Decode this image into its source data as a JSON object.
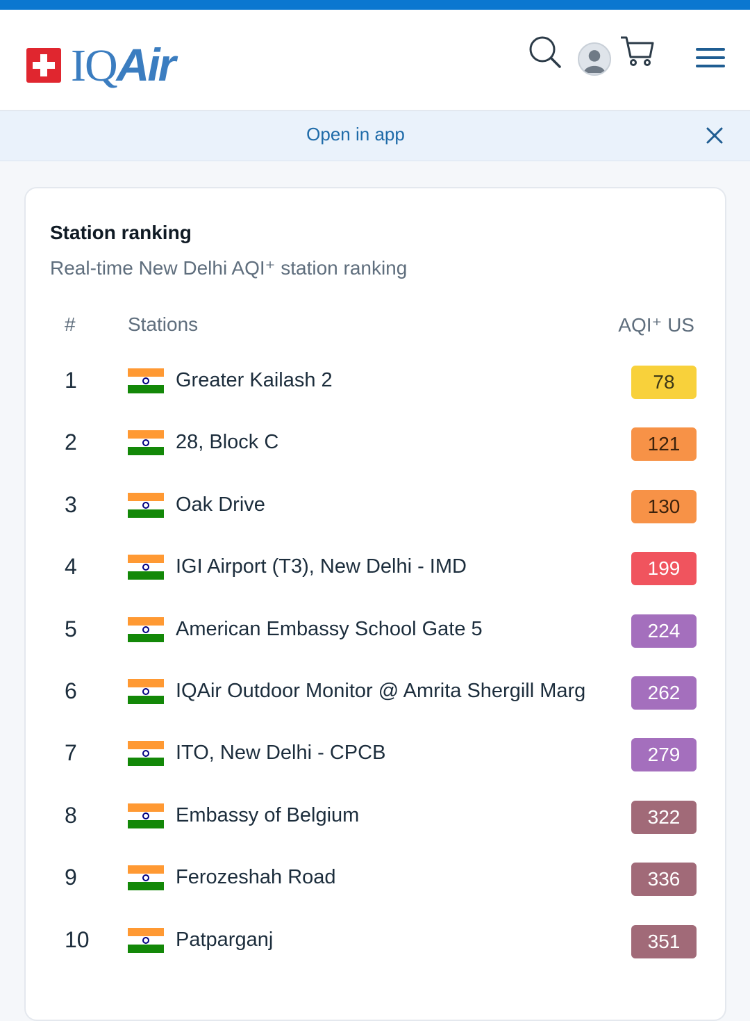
{
  "brand": {
    "name_plain": "IQ",
    "name_italic": "Air"
  },
  "header": {
    "icons": [
      "search-icon",
      "avatar",
      "cart-icon",
      "menu-icon"
    ],
    "accent_color": "#0b77d0"
  },
  "banner": {
    "link_label": "Open in app",
    "close_icon": "close-icon"
  },
  "card": {
    "title": "Station ranking",
    "subtitle": "Real-time New Delhi AQI⁺ station ranking",
    "columns": {
      "rank": "#",
      "station": "Stations",
      "aqi": "AQI⁺ US"
    },
    "rows": [
      {
        "rank": "1",
        "station": "Greater Kailash 2",
        "aqi": "78",
        "bg": "#f8d13b",
        "fg": "#3d3818"
      },
      {
        "rank": "2",
        "station": "28, Block C",
        "aqi": "121",
        "bg": "#f79247",
        "fg": "#3c220c"
      },
      {
        "rank": "3",
        "station": "Oak Drive",
        "aqi": "130",
        "bg": "#f79247",
        "fg": "#3c220c"
      },
      {
        "rank": "4",
        "station": "IGI Airport (T3), New Delhi - IMD",
        "aqi": "199",
        "bg": "#f0545e",
        "fg": "#ffffff"
      },
      {
        "rank": "5",
        "station": "American Embassy School Gate 5",
        "aqi": "224",
        "bg": "#a46fbd",
        "fg": "#ffffff"
      },
      {
        "rank": "6",
        "station": "IQAir Outdoor Monitor @ Amrita Shergill Marg",
        "aqi": "262",
        "bg": "#a46fbd",
        "fg": "#ffffff"
      },
      {
        "rank": "7",
        "station": "ITO, New Delhi - CPCB",
        "aqi": "279",
        "bg": "#a46fbd",
        "fg": "#ffffff"
      },
      {
        "rank": "8",
        "station": "Embassy of Belgium",
        "aqi": "322",
        "bg": "#a16a78",
        "fg": "#ffffff"
      },
      {
        "rank": "9",
        "station": "Ferozeshah Road",
        "aqi": "336",
        "bg": "#a16a78",
        "fg": "#ffffff"
      },
      {
        "rank": "10",
        "station": "Patparganj",
        "aqi": "351",
        "bg": "#a16a78",
        "fg": "#ffffff"
      }
    ]
  }
}
